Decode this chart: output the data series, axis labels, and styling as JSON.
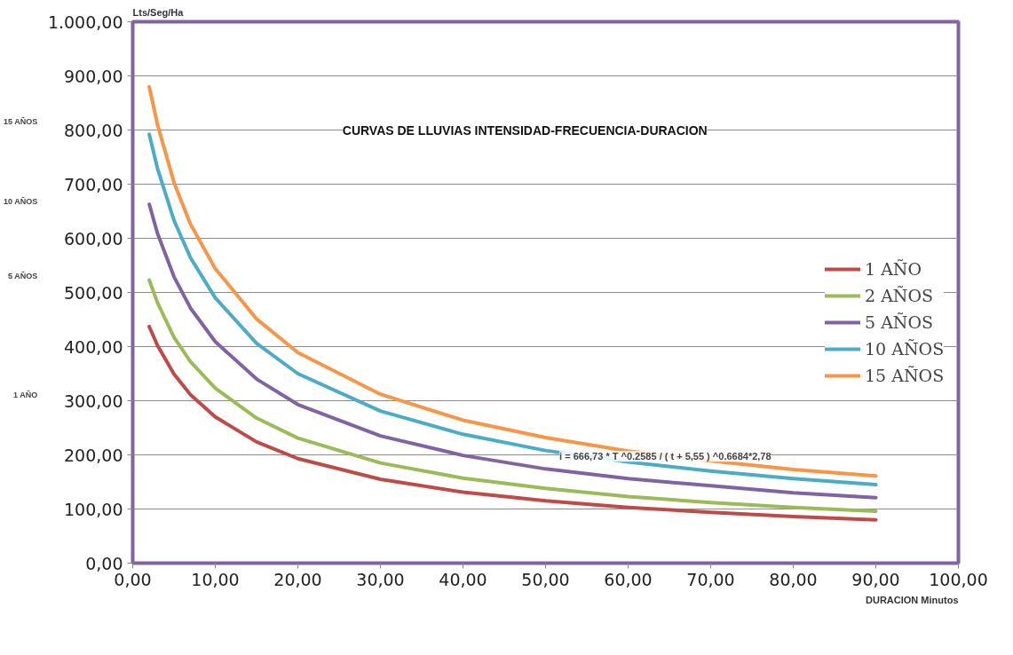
{
  "chart_data": {
    "type": "line",
    "title": "CURVAS DE LLUVIAS INTENSIDAD-FRECUENCIA-DURACION",
    "ylabel": "Lts/Seg/Ha",
    "xlabel": "DURACION Minutos",
    "x": [
      2,
      3,
      5,
      7,
      10,
      15,
      20,
      30,
      40,
      50,
      60,
      70,
      80,
      90
    ],
    "series": [
      {
        "name": "1 AÑO",
        "color": "#be4b48",
        "values": [
          437,
          402,
          349,
          311,
          270,
          224,
          193,
          155,
          131,
          115,
          103,
          94,
          86,
          80
        ]
      },
      {
        "name": "2 AÑOS",
        "color": "#9bbb59",
        "values": [
          523,
          481,
          417,
          372,
          323,
          268,
          231,
          185,
          157,
          138,
          123,
          112,
          103,
          96
        ]
      },
      {
        "name": "5 AÑOS",
        "color": "#8064a2",
        "values": [
          663,
          609,
          529,
          471,
          409,
          340,
          293,
          235,
          199,
          174,
          156,
          143,
          130,
          121
        ]
      },
      {
        "name": "10 AÑOS",
        "color": "#4bacc6",
        "values": [
          792,
          729,
          633,
          564,
          490,
          406,
          350,
          281,
          238,
          208,
          187,
          170,
          156,
          145
        ]
      },
      {
        "name": "15 AÑOS",
        "color": "#f79646",
        "values": [
          880,
          810,
          703,
          626,
          544,
          451,
          389,
          312,
          264,
          232,
          207,
          189,
          173,
          161
        ]
      }
    ],
    "annotations": [
      "i = 666,73 * T ^0.2585 / ( t + 5,55 ) ^0.6684*2,78",
      "15 AÑOS",
      "10 AÑOS",
      "5 AÑOS",
      "1 AÑO"
    ],
    "xlim": [
      0,
      100
    ],
    "ylim": [
      0,
      1000
    ],
    "xticks": [
      {
        "value": 0,
        "label": "0,00"
      },
      {
        "value": 10,
        "label": "10,00"
      },
      {
        "value": 20,
        "label": "20,00"
      },
      {
        "value": 30,
        "label": "30,00"
      },
      {
        "value": 40,
        "label": "40,00"
      },
      {
        "value": 50,
        "label": "50,00"
      },
      {
        "value": 60,
        "label": "60,00"
      },
      {
        "value": 70,
        "label": "70,00"
      },
      {
        "value": 80,
        "label": "80,00"
      },
      {
        "value": 90,
        "label": "90,00"
      },
      {
        "value": 100,
        "label": "100,00"
      }
    ],
    "yticks": [
      {
        "value": 0,
        "label": "0,00"
      },
      {
        "value": 100,
        "label": "100,00"
      },
      {
        "value": 200,
        "label": "200,00"
      },
      {
        "value": 300,
        "label": "300,00"
      },
      {
        "value": 400,
        "label": "400,00"
      },
      {
        "value": 500,
        "label": "500,00"
      },
      {
        "value": 600,
        "label": "600,00"
      },
      {
        "value": 700,
        "label": "700,00"
      },
      {
        "value": 800,
        "label": "800,00"
      },
      {
        "value": 900,
        "label": "900,00"
      },
      {
        "value": 1000,
        "label": "1.000,00"
      }
    ],
    "grid": "y",
    "legend": "right",
    "marker": "none",
    "line_style": "solid"
  }
}
